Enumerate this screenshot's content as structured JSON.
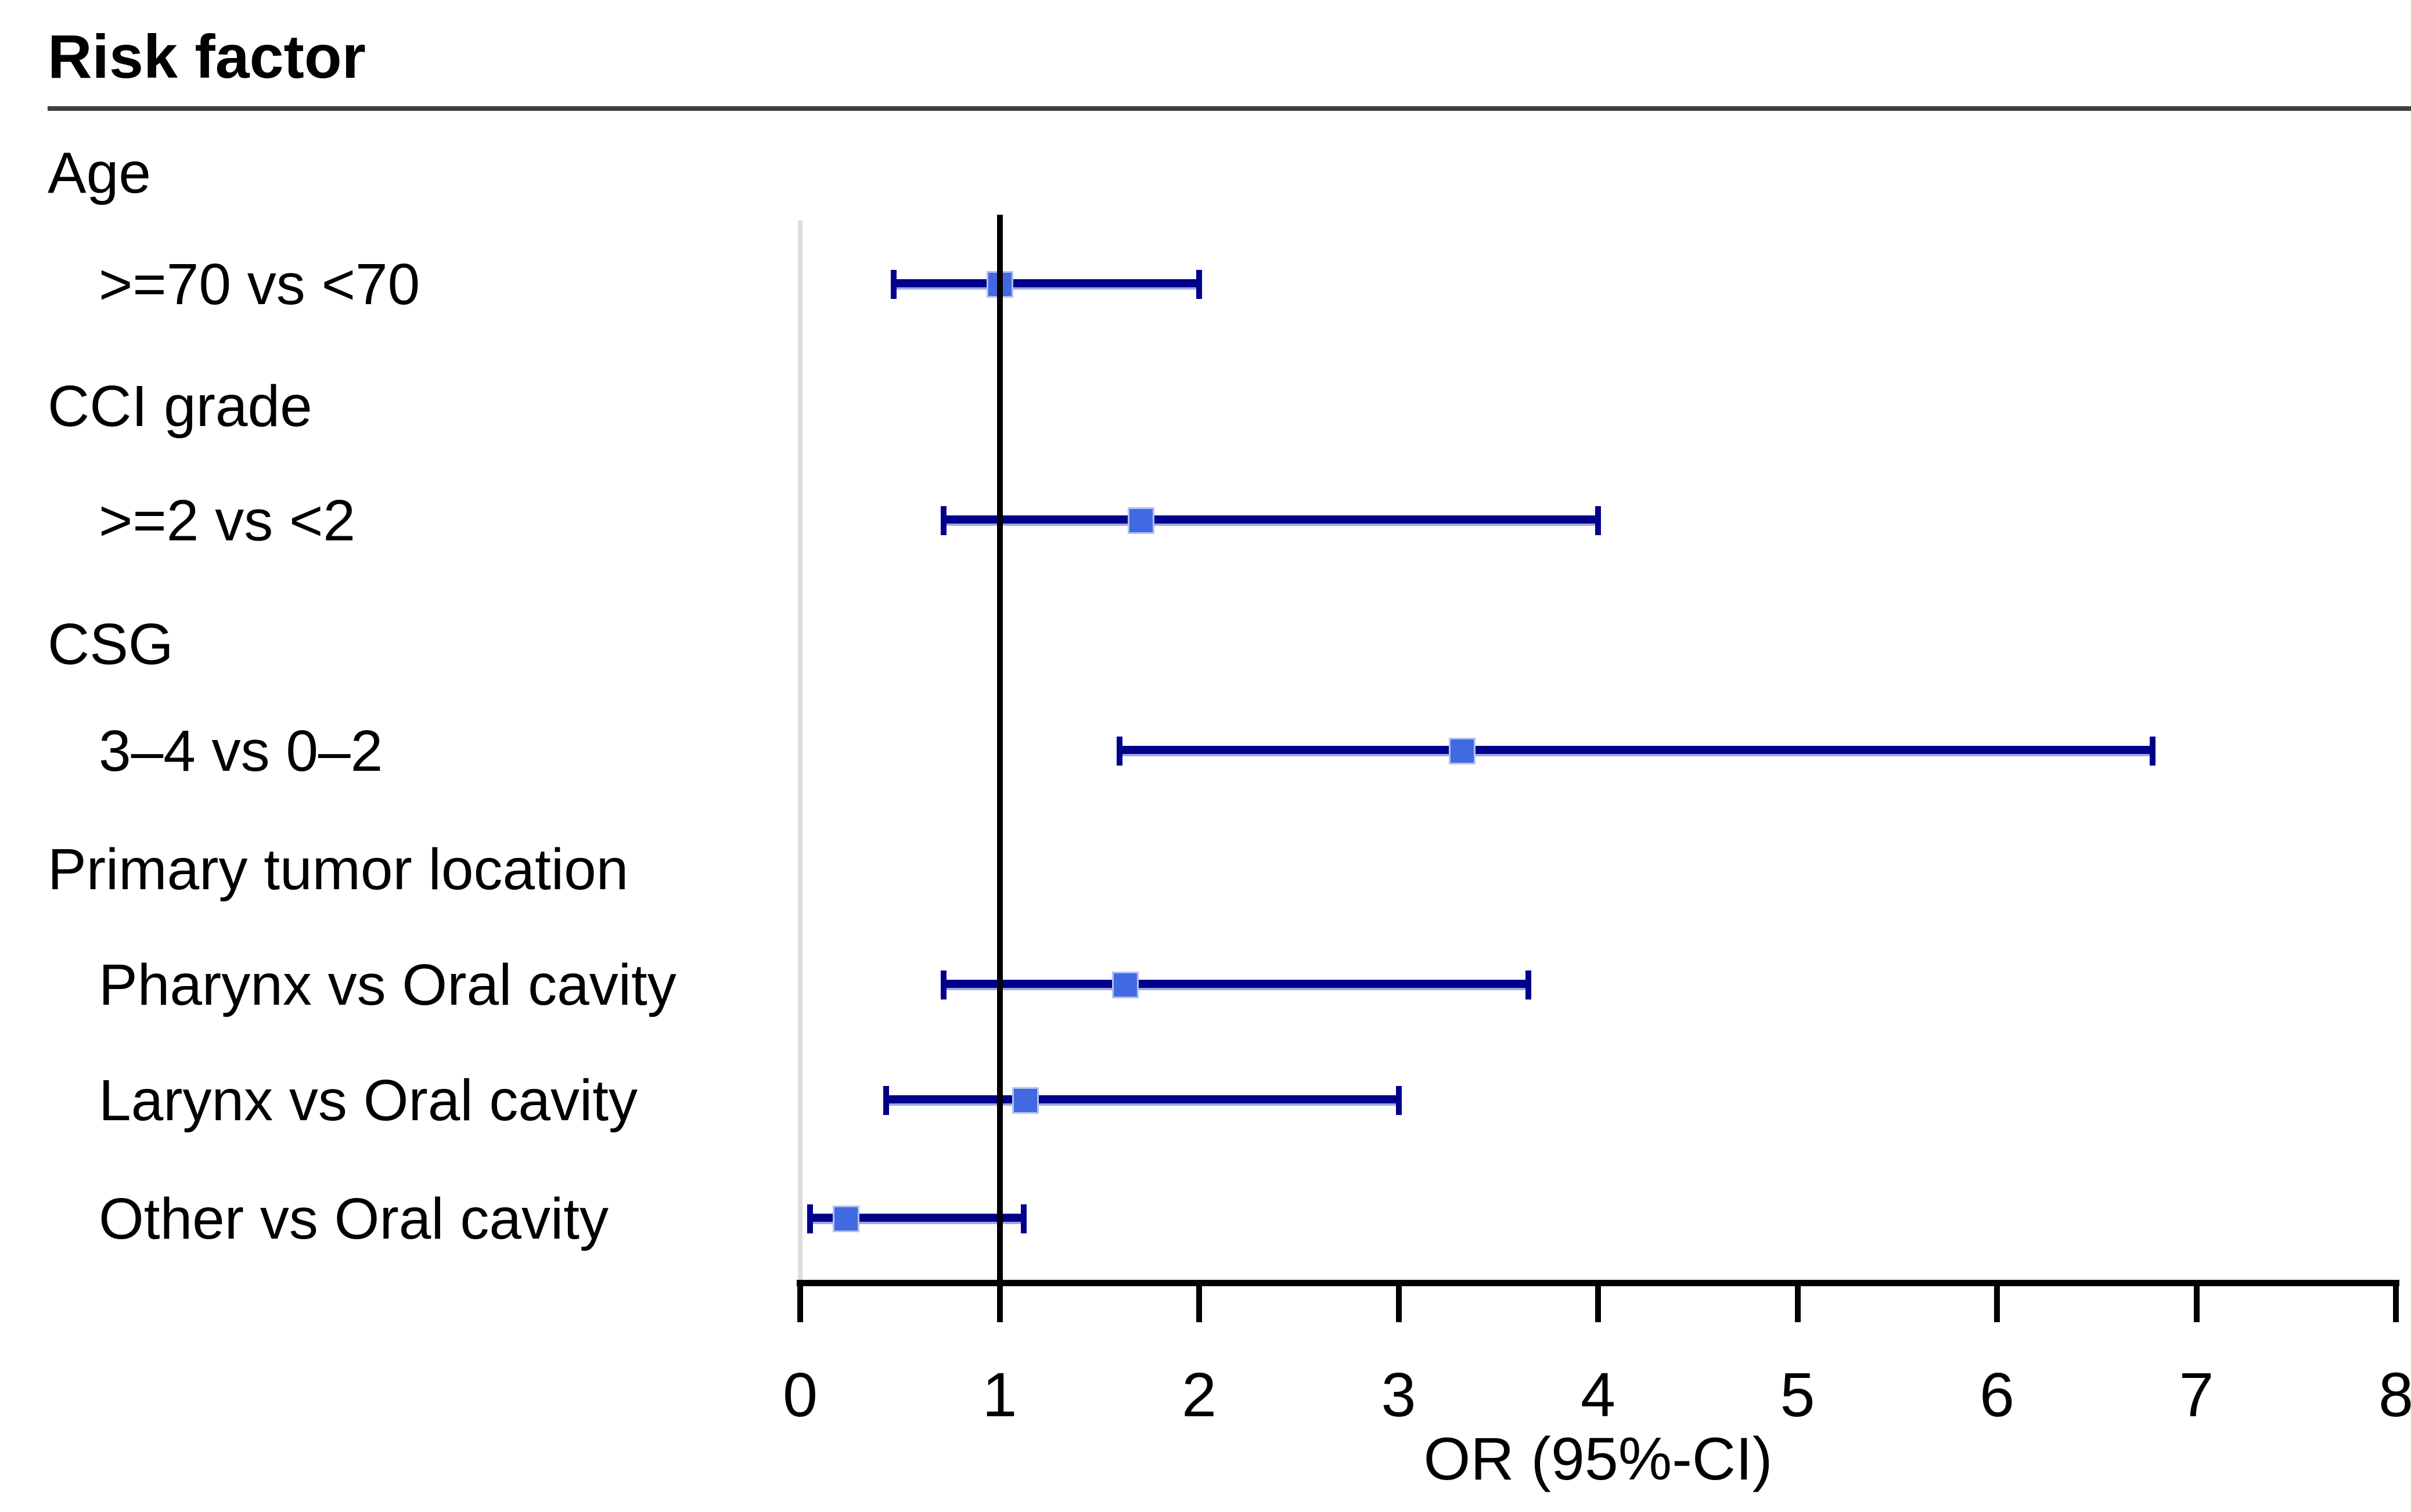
{
  "chart_data": {
    "type": "scatter",
    "variant": "forest-plot",
    "header": "Risk factor",
    "xlabel": "OR (95%-CI)",
    "xlim": [
      0,
      8
    ],
    "xticks": [
      "0",
      "1",
      "2",
      "3",
      "4",
      "5",
      "6",
      "7",
      "8"
    ],
    "reference_line_x": 1,
    "zero_line_x": 0,
    "grid": false,
    "legend": "none",
    "groups": [
      {
        "label": "Age",
        "items": [
          {
            "label": ">=70 vs <70",
            "or": 1.0,
            "ci_low": 0.47,
            "ci_high": 2.0
          }
        ]
      },
      {
        "label": "CCI grade",
        "items": [
          {
            "label": ">=2 vs <2",
            "or": 1.71,
            "ci_low": 0.72,
            "ci_high": 4.0
          }
        ]
      },
      {
        "label": "CSG",
        "items": [
          {
            "label": "3–4 vs 0–2",
            "or": 3.32,
            "ci_low": 1.6,
            "ci_high": 6.78
          }
        ]
      },
      {
        "label": "Primary tumor location",
        "items": [
          {
            "label": "Pharynx vs Oral cavity",
            "or": 1.63,
            "ci_low": 0.72,
            "ci_high": 3.65
          },
          {
            "label": "Larynx vs Oral cavity",
            "or": 1.13,
            "ci_low": 0.43,
            "ci_high": 3.0
          },
          {
            "label": "Other vs Oral cavity",
            "or": 0.23,
            "ci_low": 0.05,
            "ci_high": 1.12
          }
        ]
      }
    ],
    "colors": {
      "ci_line": "#00008B",
      "ci_underline": "#9FA8E6",
      "marker_fill": "#4169E1",
      "marker_border": "#B4C0EE",
      "reference_line": "#000000",
      "zero_line": "#DCDCDC",
      "header_rule": "#404040",
      "text": "#000000"
    }
  }
}
